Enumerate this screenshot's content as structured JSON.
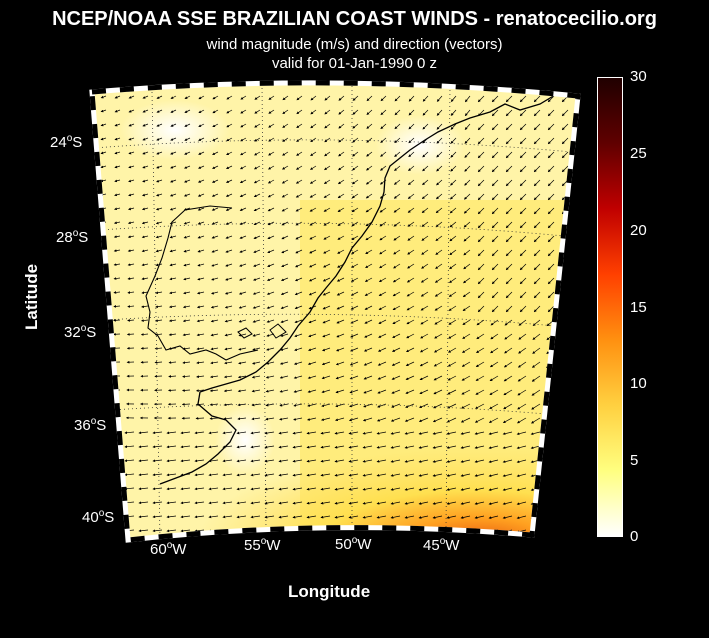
{
  "header": {
    "title": "NCEP/NOAA SSE BRAZILIAN COAST WINDS - renatocecilio.org",
    "subtitle": "wind magnitude (m/s) and direction (vectors)",
    "valid": "valid for 01-Jan-1990  0 z"
  },
  "axes": {
    "xlabel": "Longitude",
    "ylabel": "Latitude",
    "lat_ticks": [
      {
        "deg": "24",
        "hemi": "S"
      },
      {
        "deg": "28",
        "hemi": "S"
      },
      {
        "deg": "32",
        "hemi": "S"
      },
      {
        "deg": "36",
        "hemi": "S"
      },
      {
        "deg": "40",
        "hemi": "S"
      }
    ],
    "lon_ticks": [
      {
        "deg": "60",
        "hemi": "W"
      },
      {
        "deg": "55",
        "hemi": "W"
      },
      {
        "deg": "50",
        "hemi": "W"
      },
      {
        "deg": "45",
        "hemi": "W"
      }
    ]
  },
  "colorbar": {
    "ticks": [
      "30",
      "25",
      "20",
      "15",
      "10",
      "5",
      "0"
    ],
    "range": [
      0,
      30
    ],
    "colors": [
      "#ffffff",
      "#ffff80",
      "#ffd040",
      "#ff9010",
      "#ff4000",
      "#c00000",
      "#600000",
      "#200000"
    ]
  },
  "colors": {
    "background": "#000000",
    "text": "#ffffff",
    "land_field": "#fff7b0"
  }
}
